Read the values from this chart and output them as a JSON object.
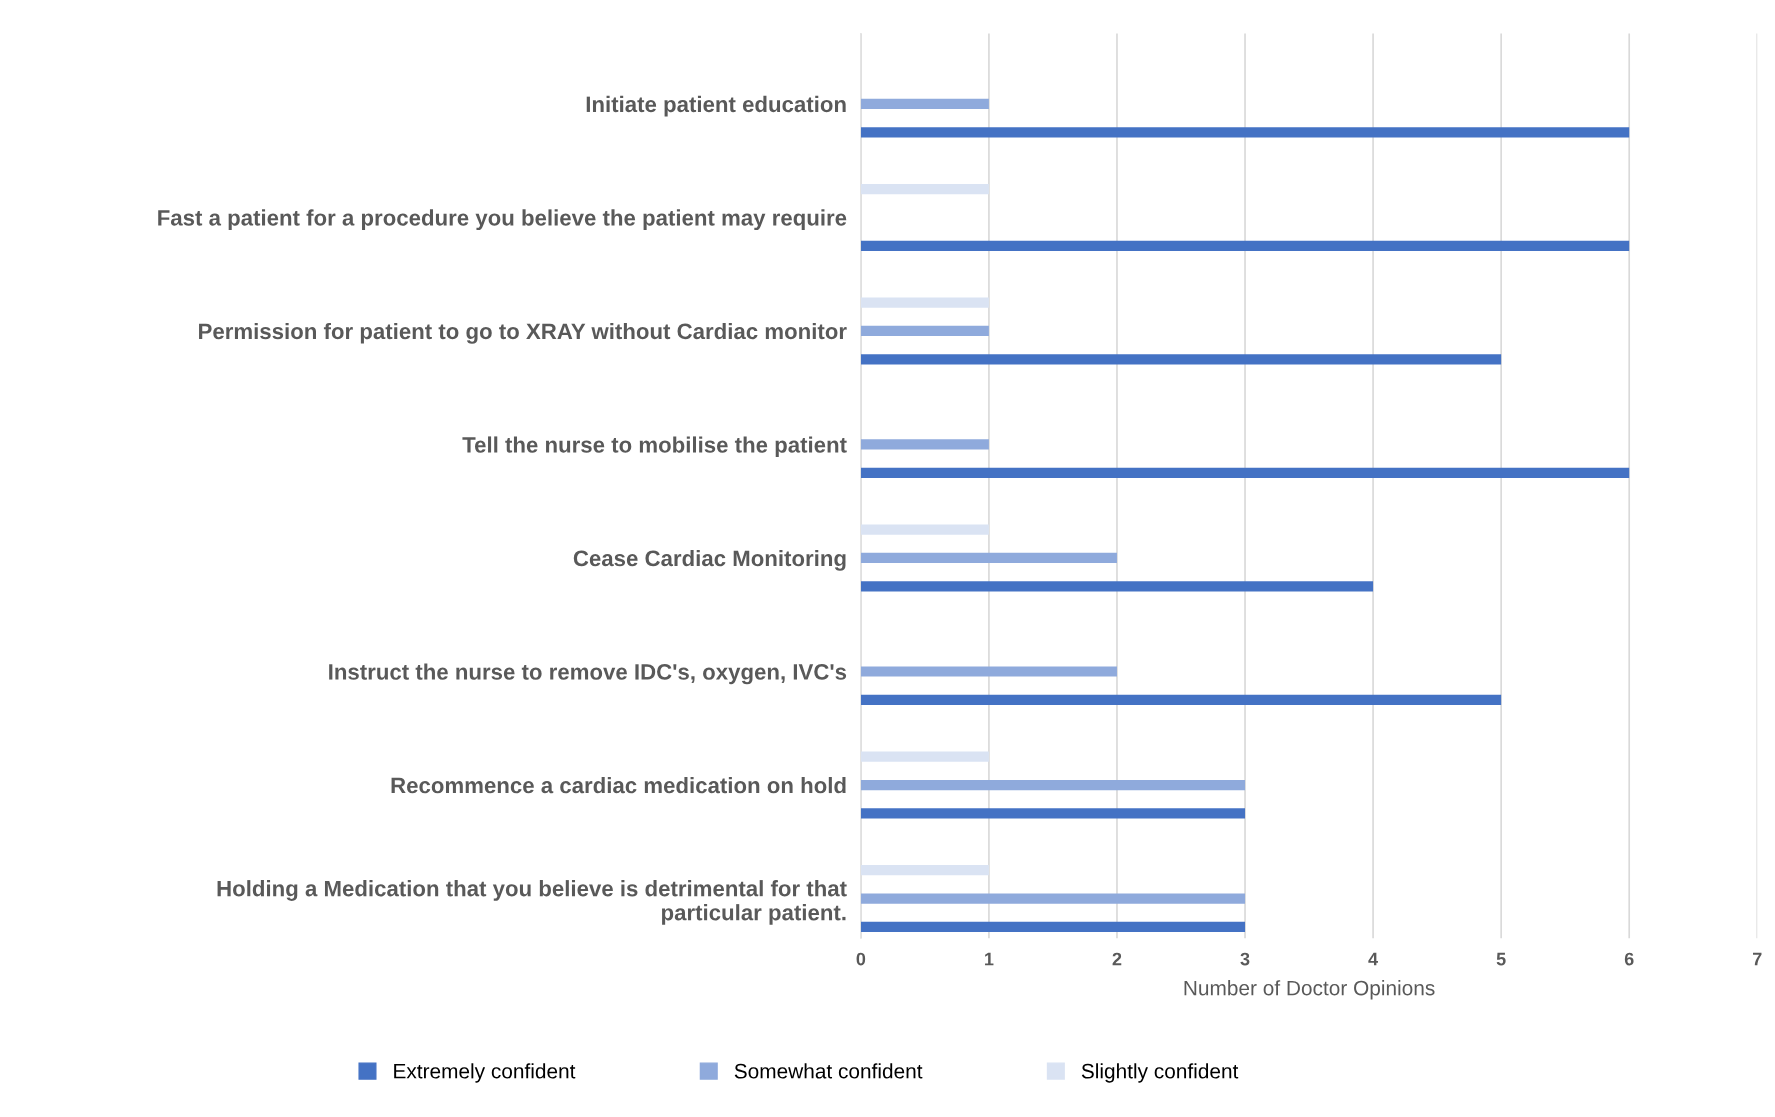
{
  "chart_data": {
    "type": "bar",
    "orientation": "horizontal",
    "xlabel": "Number of Doctor Opinions",
    "categories": [
      "Initiate patient education",
      "Fast a patient for a procedure you believe the patient may require",
      "Permission for patient to go to XRAY without Cardiac monitor",
      "Tell the nurse to mobilise the patient",
      "Cease Cardiac Monitoring",
      "Instruct the nurse to remove IDC's, oxygen, IVC's",
      "Recommence a cardiac medication on hold",
      "Holding a Medication that you believe is detrimental for that\nparticular patient."
    ],
    "series": [
      {
        "name": "Extremely confident",
        "color": "#4472c4",
        "values": [
          6,
          6,
          5,
          6,
          4,
          5,
          3,
          3
        ]
      },
      {
        "name": "Somewhat confident",
        "color": "#8faadc",
        "values": [
          1,
          0,
          1,
          1,
          2,
          2,
          3,
          3
        ]
      },
      {
        "name": "Slightly confident",
        "color": "#dae3f3",
        "values": [
          0,
          1,
          1,
          0,
          1,
          0,
          1,
          1
        ]
      }
    ],
    "xlim": [
      0,
      7
    ],
    "xticks": [
      0,
      1,
      2,
      3,
      4,
      5,
      6,
      7
    ],
    "grid": "x",
    "legend": "bottom"
  }
}
